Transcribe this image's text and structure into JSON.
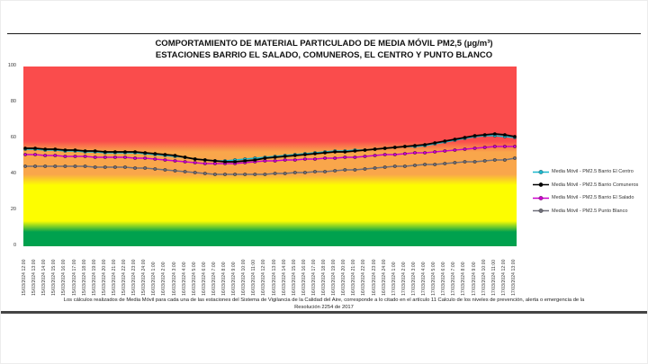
{
  "page": {
    "title_line1": "COMPORTAMIENTO DE MATERIAL PARTICULADO DE MEDIA MÓVIL PM2,5 (µg/m³)",
    "title_line2": "ESTACIONES BARRIO EL SALADO, COMUNEROS, EL CENTRO Y PUNTO BLANCO",
    "footer_line1": "Los cálculos realizados de Media Móvil para cada una de las estaciones del Sistema de Vigilancia de la Calidad del Aire, corresponde a lo citado en el artículo 11 Calculo de los niveles de prevención, alerta o emergencia de la",
    "footer_line2": "Resolución 2254 de 2017"
  },
  "chart_data": {
    "type": "line",
    "title": "COMPORTAMIENTO DE MATERIAL PARTICULADO DE MEDIA MÓVIL PM2,5 (µg/m³) — ESTACIONES BARRIO EL SALADO, COMUNEROS, EL CENTRO Y PUNTO BLANCO",
    "xlabel": "",
    "ylabel": "",
    "ylim": [
      0,
      100
    ],
    "y_ticks": [
      0,
      20,
      40,
      60,
      80,
      100
    ],
    "grid": false,
    "legend_position": "right",
    "bands": [
      {
        "name": "buena",
        "color": "#00A14E",
        "from": 0,
        "to": 11
      },
      {
        "name": "aceptable",
        "color": "#FDFD00",
        "from": 11,
        "to": 37
      },
      {
        "name": "danina-grupos-sensibles",
        "color": "#F9A64B",
        "from": 37,
        "to": 55.5
      },
      {
        "name": "danina-salud",
        "color": "#FA4C4C",
        "from": 55.5,
        "to": 100
      }
    ],
    "x_labels": [
      "15/03/2024 12:00",
      "15/03/2024 13:00",
      "15/03/2024 14:00",
      "15/03/2024 15:00",
      "15/03/2024 16:00",
      "15/03/2024 17:00",
      "15/03/2024 18:00",
      "15/03/2024 19:00",
      "15/03/2024 20:00",
      "15/03/2024 21:00",
      "15/03/2024 22:00",
      "15/03/2024 23:00",
      "15/03/2024 24:00",
      "16/03/2024 1:00",
      "16/03/2024 2:00",
      "16/03/2024 3:00",
      "16/03/2024 4:00",
      "16/03/2024 5:00",
      "16/03/2024 6:00",
      "16/03/2024 7:00",
      "16/03/2024 8:00",
      "16/03/2024 9:00",
      "16/03/2024 10:00",
      "16/03/2024 11:00",
      "16/03/2024 12:00",
      "16/03/2024 13:00",
      "16/03/2024 14:00",
      "16/03/2024 15:00",
      "16/03/2024 16:00",
      "16/03/2024 17:00",
      "16/03/2024 18:00",
      "16/03/2024 19:00",
      "16/03/2024 20:00",
      "16/03/2024 21:00",
      "16/03/2024 22:00",
      "16/03/2024 23:00",
      "16/03/2024 24:00",
      "17/03/2024 1:00",
      "17/03/2024 2:00",
      "17/03/2024 3:00",
      "17/03/2024 4:00",
      "17/03/2024 5:00",
      "17/03/2024 6:00",
      "17/03/2024 7:00",
      "17/03/2024 8:00",
      "17/03/2024 9:00",
      "17/03/2024 10:00",
      "17/03/2024 11:00",
      "17/03/2024 12:00",
      "17/03/2024 13:00"
    ],
    "series": [
      {
        "name": "Media Móvil - PM2.5 Barrio El Centro",
        "color": "#1CB8CE",
        "values": [
          54,
          54,
          53.5,
          53.5,
          53,
          53,
          52.5,
          52.5,
          52,
          52,
          52,
          52,
          51.5,
          51,
          50.5,
          50,
          49.5,
          48.5,
          48,
          47.5,
          47.5,
          48,
          48.5,
          49,
          49.5,
          50,
          50.5,
          51,
          51.5,
          52,
          52.5,
          53,
          53,
          53.5,
          53.5,
          54,
          54.5,
          55,
          55.5,
          55.5,
          56,
          57,
          58,
          59,
          60,
          61,
          61.5,
          61.5,
          61,
          60.5
        ]
      },
      {
        "name": "Media Móvil - PM2.5 Barrio Comuneros",
        "color": "#000000",
        "values": [
          54.5,
          54.5,
          54,
          54,
          53.5,
          53.5,
          53,
          53,
          52.5,
          52.5,
          52.5,
          52.5,
          52,
          51.5,
          51,
          50.5,
          49.5,
          48.5,
          48,
          47.5,
          47,
          47,
          47.5,
          48,
          49,
          49.5,
          50,
          50.5,
          51,
          51.5,
          52,
          52.5,
          52.5,
          53,
          53.5,
          54,
          54.5,
          55,
          55.5,
          56,
          56.5,
          57.5,
          58.5,
          59.5,
          60.5,
          61.5,
          62,
          62.5,
          62,
          61
        ]
      },
      {
        "name": "Media Móvil - PM2.5 Barrio El Salado",
        "color": "#CC00CC",
        "values": [
          51,
          51,
          50.5,
          50.5,
          50,
          50,
          50,
          49.5,
          49.5,
          49.5,
          49.5,
          49,
          49,
          48.5,
          48,
          47.5,
          47,
          46.5,
          46,
          46,
          46,
          46,
          46.5,
          47,
          47.5,
          47.5,
          48,
          48,
          48.5,
          48.5,
          49,
          49,
          49.5,
          49.5,
          50,
          50.5,
          51,
          51,
          51.5,
          52,
          52,
          52.5,
          53,
          53.5,
          54,
          54.5,
          55,
          55.5,
          55.5,
          55.5
        ]
      },
      {
        "name": "Media Móvil - PM2.5 Punto Blanco",
        "color": "#6F6F7A",
        "values": [
          44.5,
          44.5,
          44.5,
          44.5,
          44.5,
          44.5,
          44.5,
          44,
          44,
          44,
          44,
          43.5,
          43.5,
          43,
          42.5,
          42,
          41.5,
          41,
          40.5,
          40,
          40,
          40,
          40,
          40,
          40,
          40.5,
          40.5,
          41,
          41,
          41.5,
          41.5,
          42,
          42.5,
          42.5,
          43,
          43.5,
          44,
          44.5,
          44.5,
          45,
          45.5,
          45.5,
          46,
          46.5,
          47,
          47,
          47.5,
          48,
          48,
          49
        ]
      }
    ]
  }
}
